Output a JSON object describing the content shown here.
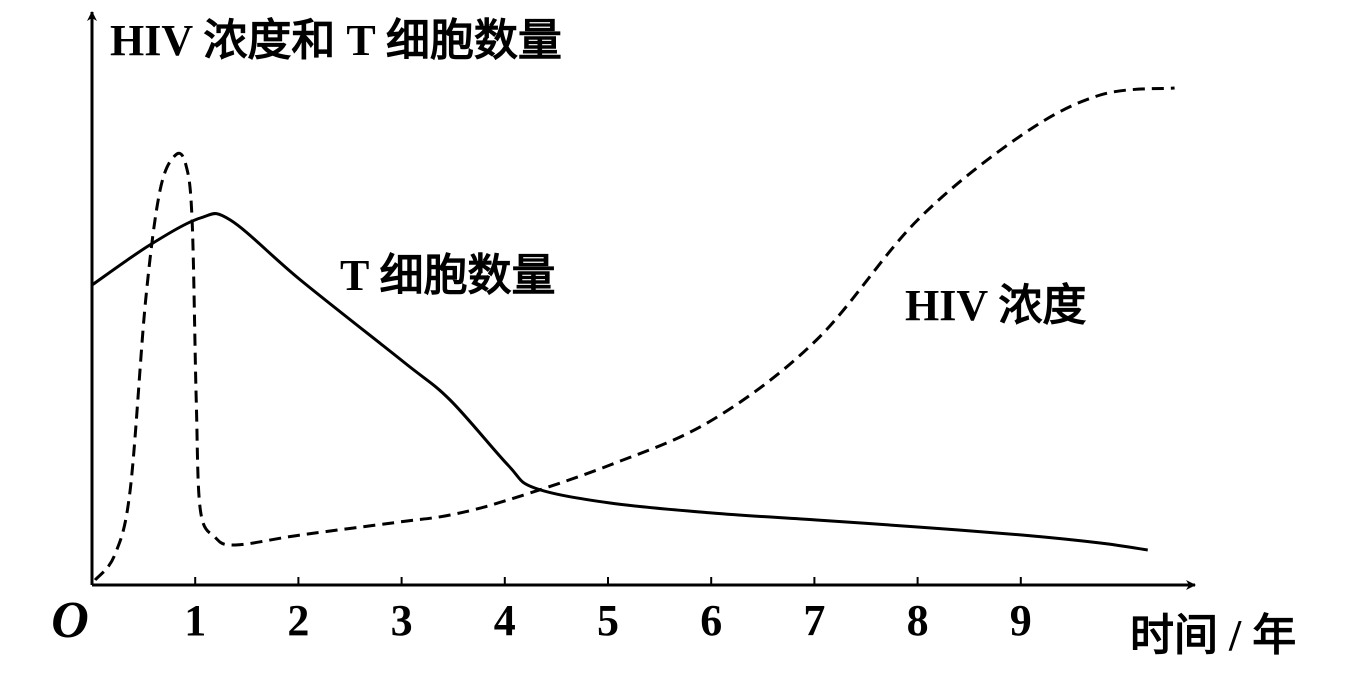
{
  "chart_data": {
    "type": "line",
    "title": "HIV 浓度和 T 细胞数量",
    "x_label": "时间 / 年",
    "xlim": [
      0,
      10.6
    ],
    "ylim": [
      0,
      100
    ],
    "xticks": [
      {
        "value": 0,
        "label": "O"
      },
      1,
      2,
      3,
      4,
      5,
      6,
      7,
      8,
      9
    ],
    "series": [
      {
        "name": "T 细胞数量",
        "style": "solid",
        "color": "#000000",
        "x": [
          0,
          0.56,
          1.05,
          1.34,
          2.02,
          3.02,
          3.47,
          4.03,
          4.29,
          5.02,
          6.01,
          7.02,
          8.0,
          9.01,
          9.77,
          10.23
        ],
        "values": [
          60,
          68,
          73.4,
          73,
          61,
          44.6,
          37,
          24,
          19.4,
          16.4,
          14.4,
          13,
          11.6,
          10,
          8.4,
          7
        ]
      },
      {
        "name": "HIV 浓度",
        "style": "dashed",
        "color": "#000000",
        "x": [
          0.03,
          0.22,
          0.37,
          0.52,
          0.66,
          0.81,
          0.91,
          0.97,
          1.01,
          1.05,
          1.19,
          1.39,
          2.02,
          2.98,
          3.47,
          4.03,
          5.02,
          6.01,
          7.02,
          8.0,
          9.01,
          9.77,
          10.49
        ],
        "values": [
          1,
          6,
          19,
          57,
          79,
          86,
          84,
          73,
          37,
          15,
          9.6,
          8,
          10,
          12.6,
          14,
          17,
          24,
          33,
          49,
          73,
          90,
          98,
          99.4
        ]
      }
    ]
  }
}
